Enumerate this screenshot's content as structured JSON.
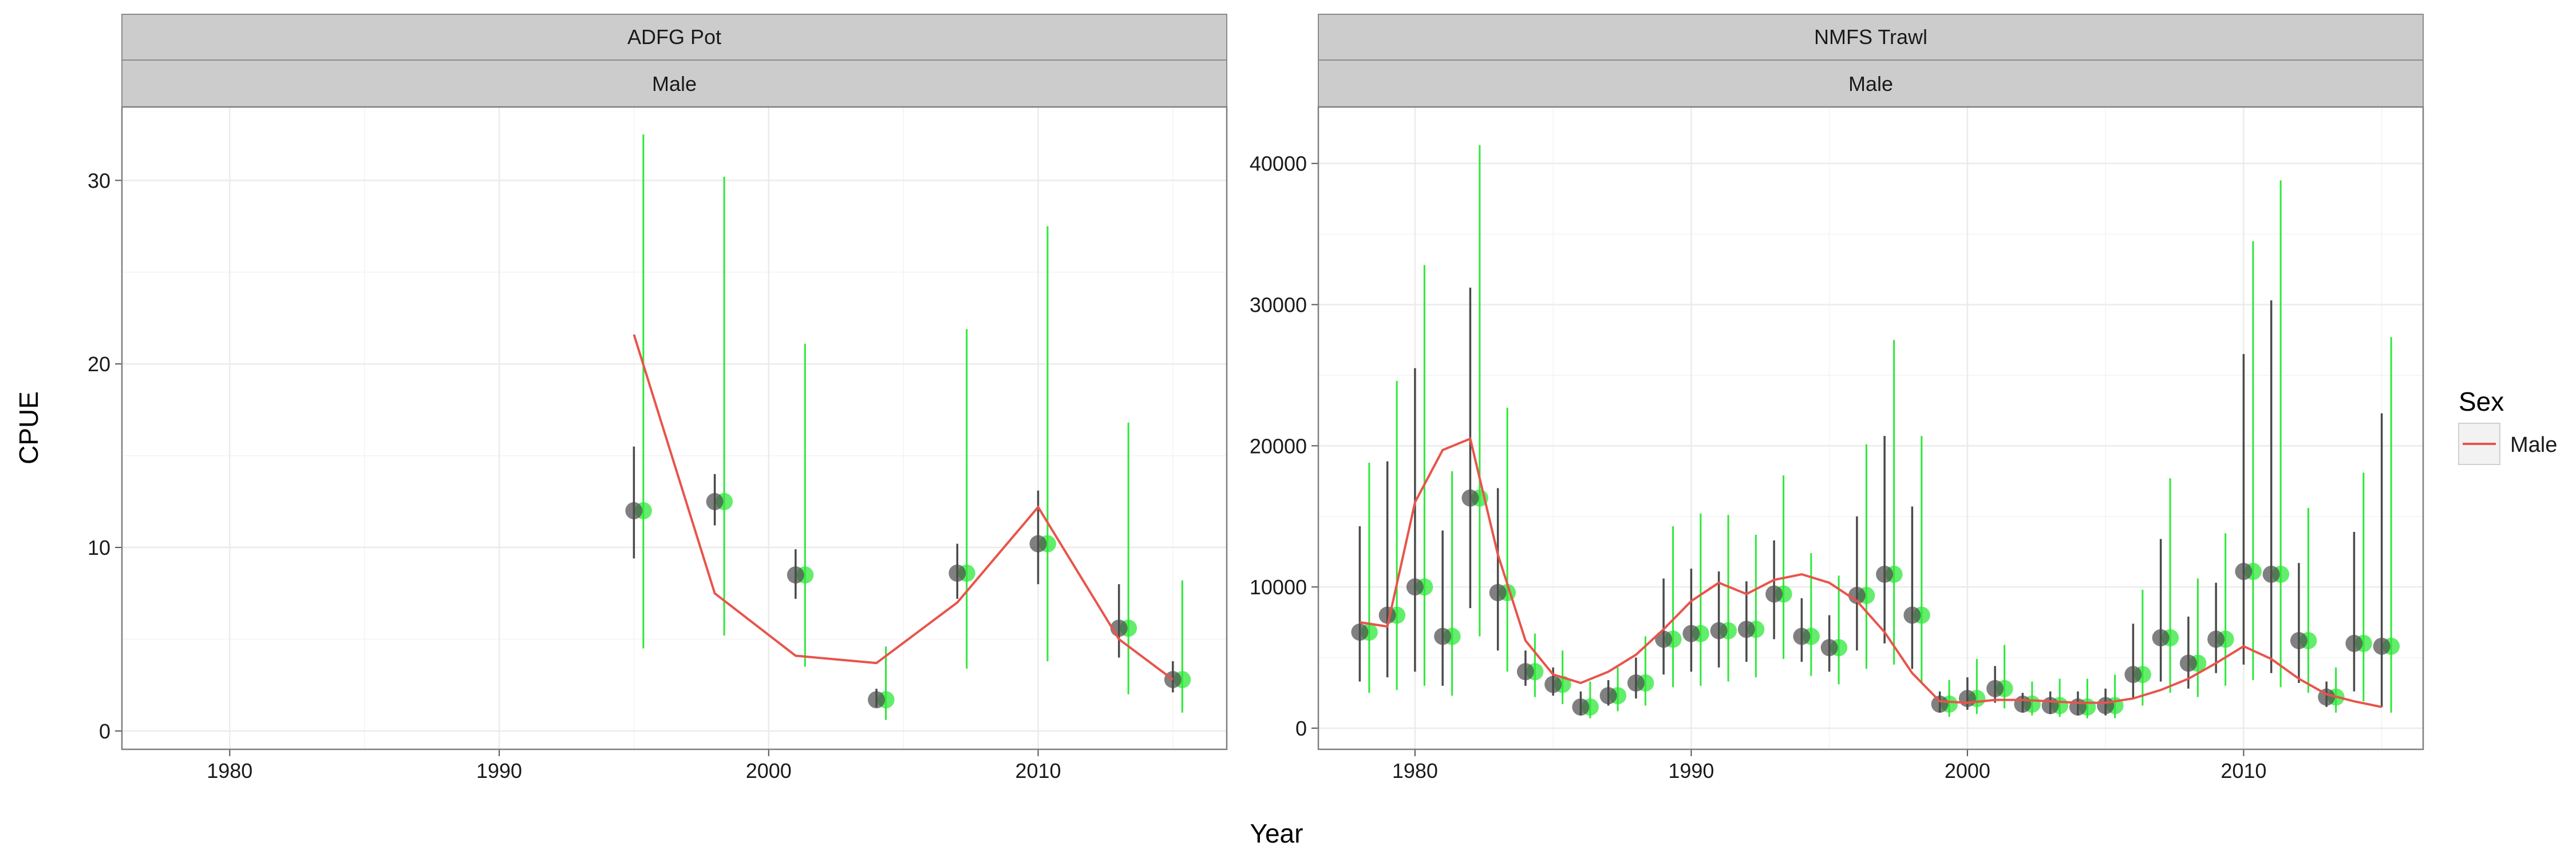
{
  "chart_data": {
    "type": "scatter",
    "xlabel": "Year",
    "ylabel": "CPUE",
    "legend": {
      "title": "Sex",
      "entries": [
        {
          "label": "Male",
          "color": "#e8544a"
        }
      ],
      "placement": "right"
    },
    "colors": {
      "observed": "#4a4a4a",
      "observed_alt": "#2ee83a",
      "fit": "#e8544a",
      "strip": "#cccccc",
      "grid": "#ebebeb"
    },
    "grid": true,
    "panels": [
      {
        "strip_top": "ADFG Pot",
        "strip_bottom": "Male",
        "xlim": [
          1976,
          2017
        ],
        "ylim": [
          -1,
          34
        ],
        "x_ticks": [
          1980,
          1990,
          2000,
          2010
        ],
        "y_ticks": [
          0,
          10,
          20,
          30
        ],
        "obs": [
          {
            "x": 1995,
            "y": 12.0,
            "lo": 9.4,
            "hi": 15.5,
            "lo2": 4.5,
            "hi2": 32.5
          },
          {
            "x": 1998,
            "y": 12.5,
            "lo": 11.2,
            "hi": 14.0,
            "lo2": 5.2,
            "hi2": 30.2
          },
          {
            "x": 2001,
            "y": 8.5,
            "lo": 7.2,
            "hi": 9.9,
            "lo2": 3.5,
            "hi2": 21.1
          },
          {
            "x": 2004,
            "y": 1.7,
            "lo": 1.3,
            "hi": 2.3,
            "lo2": 0.6,
            "hi2": 4.6
          },
          {
            "x": 2007,
            "y": 8.6,
            "lo": 7.2,
            "hi": 10.2,
            "lo2": 3.4,
            "hi2": 21.9
          },
          {
            "x": 2010,
            "y": 10.2,
            "lo": 8.0,
            "hi": 13.1,
            "lo2": 3.8,
            "hi2": 27.5
          },
          {
            "x": 2013,
            "y": 5.6,
            "lo": 4.0,
            "hi": 8.0,
            "lo2": 2.0,
            "hi2": 16.8
          },
          {
            "x": 2015,
            "y": 2.8,
            "lo": 2.1,
            "hi": 3.8,
            "lo2": 1.0,
            "hi2": 8.2
          }
        ],
        "fit": [
          {
            "x": 1995,
            "y": 21.6
          },
          {
            "x": 1998,
            "y": 7.5
          },
          {
            "x": 2001,
            "y": 4.1
          },
          {
            "x": 2004,
            "y": 3.7
          },
          {
            "x": 2007,
            "y": 7.0
          },
          {
            "x": 2010,
            "y": 12.2
          },
          {
            "x": 2013,
            "y": 5.0
          },
          {
            "x": 2015,
            "y": 2.8
          }
        ]
      },
      {
        "strip_top": "NMFS Trawl",
        "strip_bottom": "Male",
        "xlim": [
          1976.5,
          2016.5
        ],
        "ylim": [
          -1500,
          44000
        ],
        "x_ticks": [
          1980,
          1990,
          2000,
          2010
        ],
        "y_ticks": [
          0,
          10000,
          20000,
          30000,
          40000
        ],
        "obs": [
          {
            "x": 1978,
            "y": 6800,
            "lo": 3300,
            "hi": 14300,
            "lo2": 2500,
            "hi2": 18800
          },
          {
            "x": 1979,
            "y": 8000,
            "lo": 3600,
            "hi": 18900,
            "lo2": 2700,
            "hi2": 24600
          },
          {
            "x": 1980,
            "y": 10000,
            "lo": 4000,
            "hi": 25500,
            "lo2": 3000,
            "hi2": 32800
          },
          {
            "x": 1981,
            "y": 6500,
            "lo": 3000,
            "hi": 14000,
            "lo2": 2300,
            "hi2": 18200
          },
          {
            "x": 1982,
            "y": 16300,
            "lo": 8500,
            "hi": 31200,
            "lo2": 6500,
            "hi2": 41300
          },
          {
            "x": 1983,
            "y": 9600,
            "lo": 5500,
            "hi": 17000,
            "lo2": 4000,
            "hi2": 22700
          },
          {
            "x": 1984,
            "y": 4000,
            "lo": 3000,
            "hi": 5500,
            "lo2": 2200,
            "hi2": 6700
          },
          {
            "x": 1985,
            "y": 3100,
            "lo": 2300,
            "hi": 4300,
            "lo2": 1700,
            "hi2": 5500
          },
          {
            "x": 1986,
            "y": 1500,
            "lo": 900,
            "hi": 2600,
            "lo2": 700,
            "hi2": 3300
          },
          {
            "x": 1987,
            "y": 2300,
            "lo": 1600,
            "hi": 3400,
            "lo2": 1200,
            "hi2": 4300
          },
          {
            "x": 1988,
            "y": 3200,
            "lo": 2100,
            "hi": 5000,
            "lo2": 1600,
            "hi2": 6500
          },
          {
            "x": 1989,
            "y": 6300,
            "lo": 3800,
            "hi": 10600,
            "lo2": 2900,
            "hi2": 14300
          },
          {
            "x": 1990,
            "y": 6700,
            "lo": 4000,
            "hi": 11300,
            "lo2": 3000,
            "hi2": 15200
          },
          {
            "x": 1991,
            "y": 6900,
            "lo": 4300,
            "hi": 11100,
            "lo2": 3300,
            "hi2": 15100
          },
          {
            "x": 1992,
            "y": 7000,
            "lo": 4700,
            "hi": 10400,
            "lo2": 3600,
            "hi2": 13700
          },
          {
            "x": 1993,
            "y": 9500,
            "lo": 6300,
            "hi": 13300,
            "lo2": 4900,
            "hi2": 17900
          },
          {
            "x": 1994,
            "y": 6500,
            "lo": 4700,
            "hi": 9200,
            "lo2": 3700,
            "hi2": 12400
          },
          {
            "x": 1995,
            "y": 5700,
            "lo": 4000,
            "hi": 8000,
            "lo2": 3100,
            "hi2": 10800
          },
          {
            "x": 1996,
            "y": 9400,
            "lo": 5500,
            "hi": 15000,
            "lo2": 4200,
            "hi2": 20100
          },
          {
            "x": 1997,
            "y": 10900,
            "lo": 6000,
            "hi": 20700,
            "lo2": 4500,
            "hi2": 27500
          },
          {
            "x": 1998,
            "y": 8000,
            "lo": 4200,
            "hi": 15700,
            "lo2": 3200,
            "hi2": 20700
          },
          {
            "x": 1999,
            "y": 1700,
            "lo": 1100,
            "hi": 2600,
            "lo2": 800,
            "hi2": 3400
          },
          {
            "x": 2000,
            "y": 2100,
            "lo": 1300,
            "hi": 3600,
            "lo2": 1000,
            "hi2": 4900
          },
          {
            "x": 2001,
            "y": 2800,
            "lo": 1800,
            "hi": 4400,
            "lo2": 1400,
            "hi2": 5900
          },
          {
            "x": 2002,
            "y": 1700,
            "lo": 1100,
            "hi": 2500,
            "lo2": 900,
            "hi2": 3300
          },
          {
            "x": 2003,
            "y": 1600,
            "lo": 1000,
            "hi": 2600,
            "lo2": 800,
            "hi2": 3500
          },
          {
            "x": 2004,
            "y": 1500,
            "lo": 900,
            "hi": 2600,
            "lo2": 700,
            "hi2": 3500
          },
          {
            "x": 2005,
            "y": 1600,
            "lo": 900,
            "hi": 2800,
            "lo2": 700,
            "hi2": 3800
          },
          {
            "x": 2006,
            "y": 3800,
            "lo": 2100,
            "hi": 7400,
            "lo2": 1600,
            "hi2": 9800
          },
          {
            "x": 2007,
            "y": 6400,
            "lo": 3300,
            "hi": 13400,
            "lo2": 2500,
            "hi2": 17700
          },
          {
            "x": 2008,
            "y": 4600,
            "lo": 2800,
            "hi": 7900,
            "lo2": 2200,
            "hi2": 10600
          },
          {
            "x": 2009,
            "y": 6300,
            "lo": 3900,
            "hi": 10300,
            "lo2": 3000,
            "hi2": 13800
          },
          {
            "x": 2010,
            "y": 11100,
            "lo": 4500,
            "hi": 26500,
            "lo2": 3400,
            "hi2": 34500
          },
          {
            "x": 2011,
            "y": 10900,
            "lo": 3900,
            "hi": 30300,
            "lo2": 2900,
            "hi2": 38800
          },
          {
            "x": 2012,
            "y": 6200,
            "lo": 3200,
            "hi": 11700,
            "lo2": 2500,
            "hi2": 15600
          },
          {
            "x": 2013,
            "y": 2200,
            "lo": 1500,
            "hi": 3300,
            "lo2": 1100,
            "hi2": 4300
          },
          {
            "x": 2014,
            "y": 6000,
            "lo": 2600,
            "hi": 13900,
            "lo2": 1900,
            "hi2": 18100
          },
          {
            "x": 2015,
            "y": 5800,
            "lo": 1500,
            "hi": 22300,
            "lo2": 1100,
            "hi2": 27700
          }
        ],
        "fit": [
          {
            "x": 1978,
            "y": 7500
          },
          {
            "x": 1979,
            "y": 7200
          },
          {
            "x": 1980,
            "y": 16000
          },
          {
            "x": 1981,
            "y": 19700
          },
          {
            "x": 1982,
            "y": 20500
          },
          {
            "x": 1983,
            "y": 12300
          },
          {
            "x": 1984,
            "y": 6200
          },
          {
            "x": 1985,
            "y": 3800
          },
          {
            "x": 1986,
            "y": 3200
          },
          {
            "x": 1987,
            "y": 4000
          },
          {
            "x": 1988,
            "y": 5200
          },
          {
            "x": 1989,
            "y": 7000
          },
          {
            "x": 1990,
            "y": 9000
          },
          {
            "x": 1991,
            "y": 10300
          },
          {
            "x": 1992,
            "y": 9500
          },
          {
            "x": 1993,
            "y": 10500
          },
          {
            "x": 1994,
            "y": 10900
          },
          {
            "x": 1995,
            "y": 10300
          },
          {
            "x": 1996,
            "y": 9000
          },
          {
            "x": 1997,
            "y": 6800
          },
          {
            "x": 1998,
            "y": 3900
          },
          {
            "x": 1999,
            "y": 1900
          },
          {
            "x": 2000,
            "y": 1800
          },
          {
            "x": 2001,
            "y": 2000
          },
          {
            "x": 2002,
            "y": 2000
          },
          {
            "x": 2003,
            "y": 1900
          },
          {
            "x": 2004,
            "y": 1800
          },
          {
            "x": 2005,
            "y": 1800
          },
          {
            "x": 2006,
            "y": 2100
          },
          {
            "x": 2007,
            "y": 2700
          },
          {
            "x": 2008,
            "y": 3500
          },
          {
            "x": 2009,
            "y": 4600
          },
          {
            "x": 2010,
            "y": 5800
          },
          {
            "x": 2011,
            "y": 4900
          },
          {
            "x": 2012,
            "y": 3500
          },
          {
            "x": 2013,
            "y": 2400
          },
          {
            "x": 2014,
            "y": 1900
          },
          {
            "x": 2015,
            "y": 1500
          }
        ]
      }
    ]
  }
}
